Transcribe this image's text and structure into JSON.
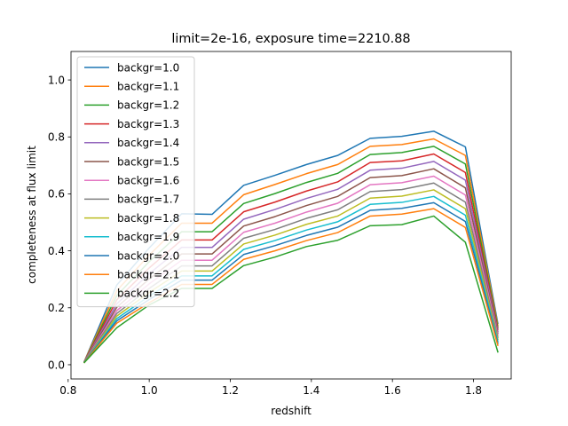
{
  "chart_data": {
    "type": "line",
    "title": "limit=2e-16, exposure time=2210.88",
    "xlabel": "redshift",
    "ylabel": "completeness at flux limit",
    "xlim": [
      0.807,
      1.893
    ],
    "ylim": [
      -0.05,
      1.1
    ],
    "xticks": [
      "0.8",
      "1.0",
      "1.2",
      "1.4",
      "1.6",
      "1.8"
    ],
    "yticks": [
      "0.0",
      "0.2",
      "0.4",
      "0.6",
      "0.8",
      "1.0"
    ],
    "grid": false,
    "legend_position": "top-left",
    "x": [
      0.84,
      0.92,
      1.0,
      1.08,
      1.155,
      1.233,
      1.31,
      1.388,
      1.465,
      1.545,
      1.623,
      1.702,
      1.78,
      1.86
    ],
    "series": [
      {
        "name": "backgr=1.0",
        "color": "#1f77b4",
        "values": [
          0.012,
          0.28,
          0.41,
          0.53,
          0.528,
          0.63,
          0.665,
          0.703,
          0.735,
          0.795,
          0.802,
          0.82,
          0.765,
          0.145
        ]
      },
      {
        "name": "backgr=1.1",
        "color": "#ff7f0e",
        "values": [
          0.012,
          0.26,
          0.385,
          0.497,
          0.497,
          0.597,
          0.633,
          0.671,
          0.703,
          0.767,
          0.773,
          0.793,
          0.735,
          0.138
        ]
      },
      {
        "name": "backgr=1.2",
        "color": "#2ca02c",
        "values": [
          0.011,
          0.243,
          0.362,
          0.467,
          0.467,
          0.566,
          0.601,
          0.64,
          0.672,
          0.738,
          0.745,
          0.767,
          0.705,
          0.131
        ]
      },
      {
        "name": "backgr=1.3",
        "color": "#d62728",
        "values": [
          0.011,
          0.228,
          0.34,
          0.438,
          0.438,
          0.537,
          0.571,
          0.61,
          0.642,
          0.71,
          0.716,
          0.74,
          0.675,
          0.124
        ]
      },
      {
        "name": "backgr=1.4",
        "color": "#9467bd",
        "values": [
          0.011,
          0.214,
          0.32,
          0.412,
          0.412,
          0.511,
          0.545,
          0.584,
          0.616,
          0.683,
          0.69,
          0.714,
          0.648,
          0.117
        ]
      },
      {
        "name": "backgr=1.5",
        "color": "#8c564b",
        "values": [
          0.01,
          0.202,
          0.301,
          0.389,
          0.389,
          0.487,
          0.52,
          0.559,
          0.591,
          0.657,
          0.664,
          0.688,
          0.621,
          0.11
        ]
      },
      {
        "name": "backgr=1.6",
        "color": "#e377c2",
        "values": [
          0.01,
          0.19,
          0.284,
          0.367,
          0.367,
          0.465,
          0.497,
          0.536,
          0.567,
          0.632,
          0.639,
          0.662,
          0.596,
          0.103
        ]
      },
      {
        "name": "backgr=1.7",
        "color": "#7f7f7f",
        "values": [
          0.01,
          0.18,
          0.268,
          0.347,
          0.347,
          0.444,
          0.475,
          0.514,
          0.544,
          0.608,
          0.615,
          0.638,
          0.571,
          0.096
        ]
      },
      {
        "name": "backgr=1.8",
        "color": "#bcbd22",
        "values": [
          0.009,
          0.171,
          0.254,
          0.329,
          0.329,
          0.424,
          0.455,
          0.493,
          0.522,
          0.585,
          0.592,
          0.614,
          0.548,
          0.089
        ]
      },
      {
        "name": "backgr=1.9",
        "color": "#17becf",
        "values": [
          0.009,
          0.162,
          0.241,
          0.312,
          0.312,
          0.405,
          0.436,
          0.473,
          0.502,
          0.563,
          0.57,
          0.591,
          0.525,
          0.082
        ]
      },
      {
        "name": "backgr=2.0",
        "color": "#1f77b4",
        "values": [
          0.009,
          0.154,
          0.229,
          0.297,
          0.297,
          0.387,
          0.418,
          0.454,
          0.483,
          0.542,
          0.549,
          0.569,
          0.503,
          0.075
        ]
      },
      {
        "name": "backgr=2.1",
        "color": "#ff7f0e",
        "values": [
          0.008,
          0.146,
          0.218,
          0.282,
          0.282,
          0.37,
          0.4,
          0.436,
          0.464,
          0.522,
          0.529,
          0.548,
          0.482,
          0.068
        ]
      },
      {
        "name": "backgr=2.2",
        "color": "#2ca02c",
        "values": [
          0.008,
          0.13,
          0.21,
          0.268,
          0.268,
          0.348,
          0.378,
          0.415,
          0.437,
          0.488,
          0.492,
          0.522,
          0.43,
          0.045
        ]
      }
    ]
  }
}
